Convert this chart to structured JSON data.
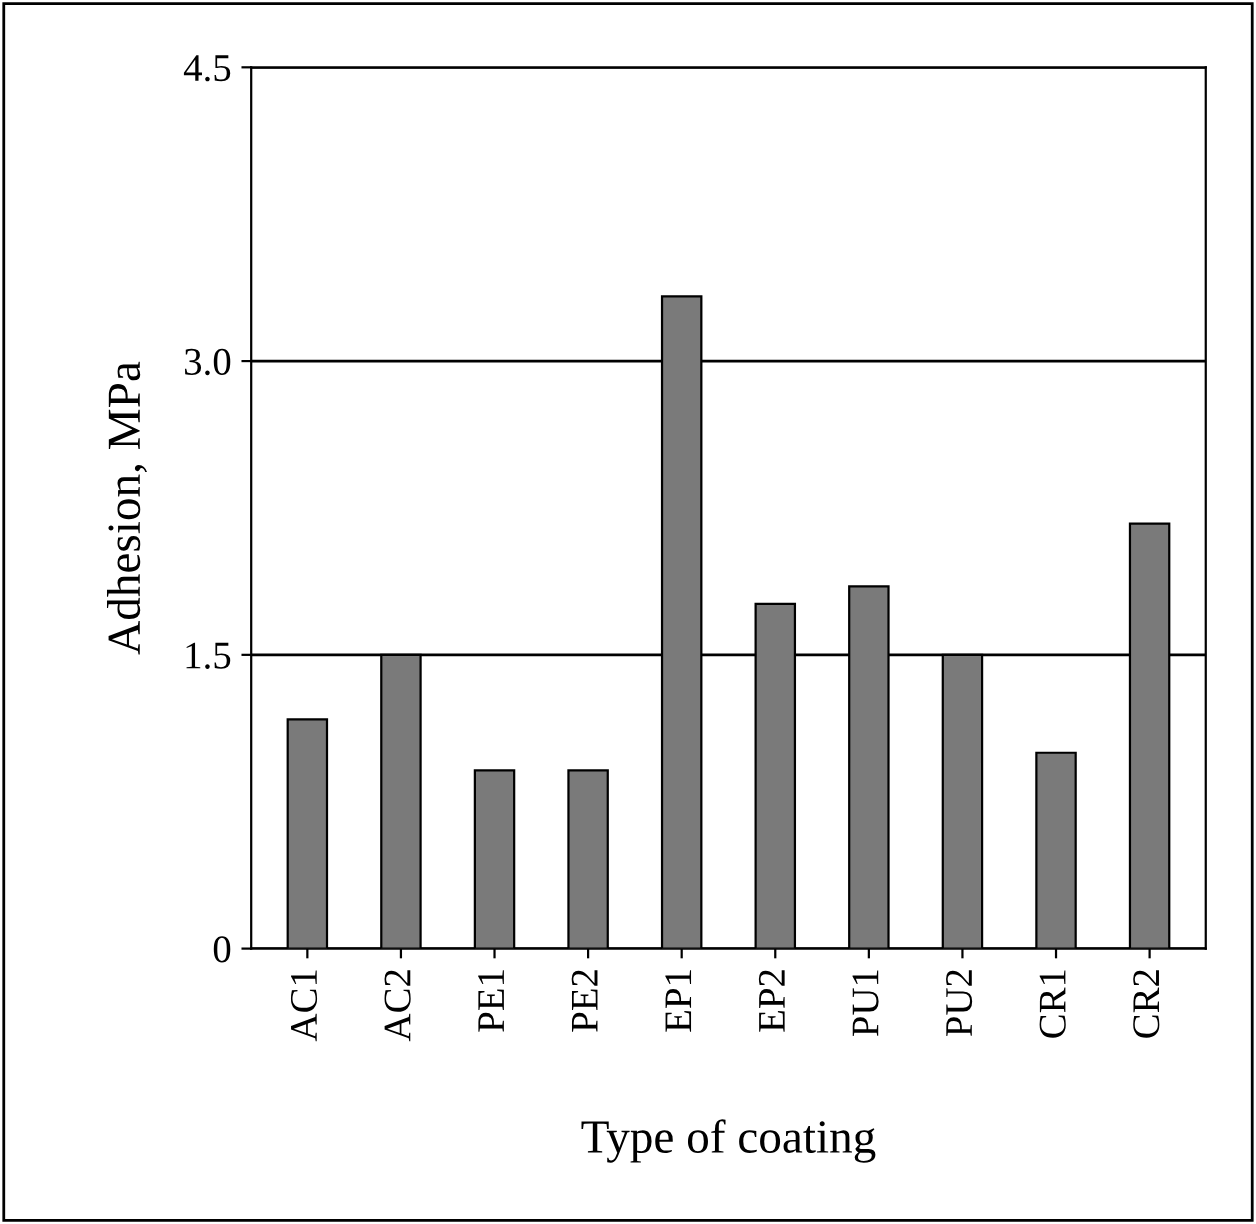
{
  "chart_data": {
    "type": "bar",
    "xlabel": "Type of coating",
    "ylabel": "Adhesion, MPa",
    "categories": [
      "AC1",
      "AC2",
      "PE1",
      "PE2",
      "EP1",
      "EP2",
      "PU1",
      "PU2",
      "CR1",
      "CR2"
    ],
    "values": [
      1.17,
      1.5,
      0.91,
      0.91,
      3.33,
      1.76,
      1.85,
      1.5,
      1.0,
      2.17
    ],
    "color": "#7a7a7a",
    "ylim": [
      0,
      4.5
    ],
    "yticks": [
      0,
      1.5,
      {
        "value": 3.0,
        "label": "3.0"
      },
      4.5
    ],
    "grid": "y"
  }
}
